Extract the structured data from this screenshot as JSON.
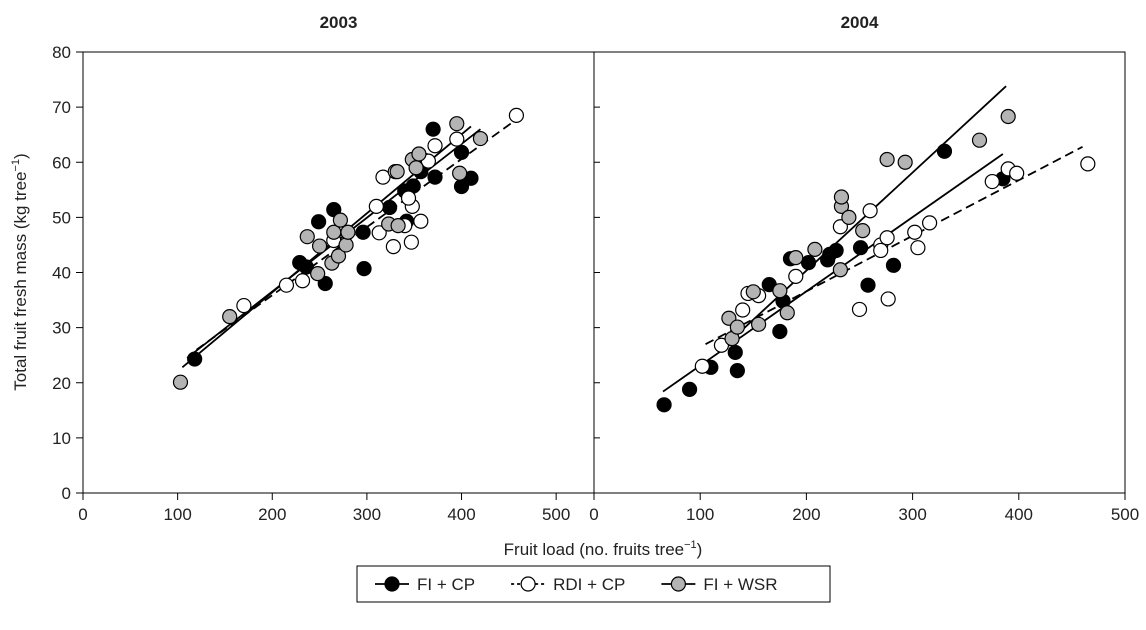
{
  "chart_data": [
    {
      "type": "scatter",
      "title": "2003",
      "xlabel": [
        "Fruit load (no. fruits tree",
        "−1",
        ")"
      ],
      "ylabel": [
        "Total fruit fresh mass (kg tree",
        "−1",
        ")"
      ],
      "xlim": [
        0,
        540
      ],
      "xticks": [
        0,
        100,
        200,
        300,
        400,
        500
      ],
      "ylim": [
        0,
        80
      ],
      "yticks": [
        0,
        10,
        20,
        30,
        40,
        50,
        60,
        70,
        80
      ],
      "series": [
        {
          "name": "FI + CP",
          "color": "#000000",
          "dash": false,
          "x": [
            118,
            229,
            236,
            256,
            249,
            265,
            296,
            297,
            324,
            342,
            340,
            349,
            357,
            362,
            372,
            370,
            400,
            400,
            410
          ],
          "values": [
            24.3,
            41.8,
            41,
            38,
            49.2,
            51.4,
            47.3,
            40.7,
            51.8,
            49.3,
            54.8,
            55.7,
            58.3,
            60.3,
            57.3,
            66,
            61.8,
            55.6,
            57.1
          ],
          "fit": {
            "x": [
              105,
              410
            ],
            "values": [
              22.8,
              66.5
            ]
          }
        },
        {
          "name": "RDI + CP",
          "color": "#ffffff",
          "dash": true,
          "x": [
            170,
            215,
            232,
            265,
            310,
            313,
            317,
            328,
            330,
            340,
            347,
            348,
            357,
            365,
            372,
            395,
            458,
            344
          ],
          "values": [
            34,
            37.7,
            38.5,
            45.8,
            52,
            47.2,
            57.3,
            44.7,
            58.3,
            48.5,
            45.5,
            52,
            49.3,
            60.2,
            63,
            64.2,
            68.5,
            53.5
          ],
          "fit": {
            "x": [
              120,
              460
            ],
            "values": [
              26,
              68
            ]
          }
        },
        {
          "name": "FI + WSR",
          "color": "#b4b4b4",
          "dash": false,
          "x": [
            103,
            155,
            237,
            250,
            248,
            263,
            265,
            272,
            270,
            278,
            280,
            323,
            333,
            332,
            348,
            352,
            355,
            395,
            398,
            420
          ],
          "values": [
            20.1,
            32,
            46.5,
            44.8,
            39.8,
            41.7,
            47.3,
            49.5,
            43,
            45,
            47.3,
            48.8,
            48.5,
            58.3,
            60.5,
            59,
            61.5,
            67,
            58,
            64.3
          ],
          "fit": {
            "x": [
              110,
              420
            ],
            "values": [
              24.5,
              66
            ]
          }
        }
      ]
    },
    {
      "type": "scatter",
      "title": "2004",
      "xlim": [
        0,
        500
      ],
      "xticks": [
        0,
        100,
        200,
        300,
        400,
        500
      ],
      "ylim": [
        0,
        80
      ],
      "yticks": [
        0,
        10,
        20,
        30,
        40,
        50,
        60,
        70,
        80
      ],
      "series": [
        {
          "color": "#000000",
          "dash": false,
          "x": [
            66,
            90,
            110,
            133,
            135,
            165,
            175,
            178,
            185,
            202,
            220,
            222,
            228,
            251,
            258,
            282,
            330,
            385
          ],
          "values": [
            16,
            18.8,
            22.8,
            25.5,
            22.2,
            37.8,
            29.3,
            34.8,
            42.5,
            41.8,
            42.3,
            43.3,
            44,
            44.5,
            37.7,
            41.3,
            62,
            57
          ],
          "fit": {
            "x": [
              65,
              385
            ],
            "values": [
              18.4,
              61.5
            ]
          }
        },
        {
          "color": "#ffffff",
          "dash": true,
          "x": [
            102,
            120,
            140,
            145,
            190,
            232,
            250,
            260,
            270,
            270,
            276,
            277,
            302,
            305,
            316,
            375,
            390,
            398,
            465,
            155
          ],
          "values": [
            23,
            26.8,
            33.2,
            36.2,
            39.3,
            48.3,
            33.3,
            51.2,
            45,
            44,
            46.3,
            35.2,
            47.3,
            44.5,
            49,
            56.5,
            58.8,
            58,
            59.7,
            35.8
          ],
          "fit": {
            "x": [
              105,
              460
            ],
            "values": [
              27,
              62.8
            ]
          }
        },
        {
          "color": "#b4b4b4",
          "dash": false,
          "x": [
            127,
            130,
            135,
            150,
            155,
            175,
            182,
            190,
            208,
            232,
            233,
            233,
            240,
            253,
            276,
            293,
            363,
            390
          ],
          "values": [
            31.7,
            28,
            30.1,
            36.5,
            30.6,
            36.7,
            32.7,
            42.7,
            44.2,
            40.5,
            52,
            53.7,
            50,
            47.6,
            60.5,
            60,
            64,
            68.3
          ],
          "fit": {
            "x": [
              125,
              388
            ],
            "values": [
              27,
              73.8
            ]
          }
        }
      ]
    }
  ]
}
